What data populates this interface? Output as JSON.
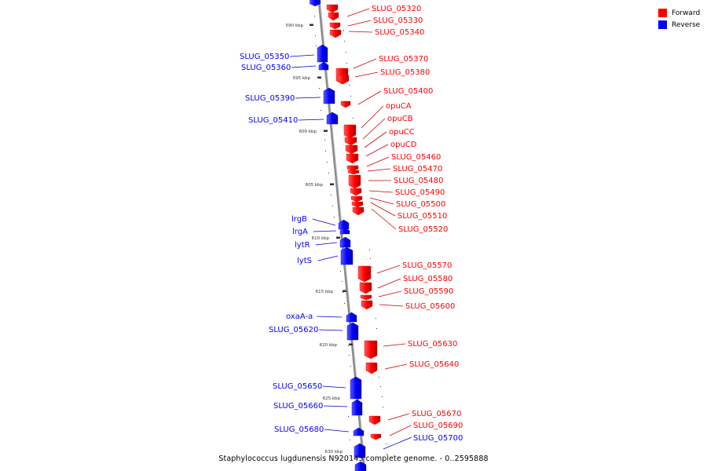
{
  "caption": "Staphylococcus lugdunensis N920143 complete genome. - 0..2595888",
  "legend": [
    {
      "label": "Forward",
      "color": "#ff0000"
    },
    {
      "label": "Reverse",
      "color": "#0000ff"
    }
  ],
  "colors": {
    "forward": "#ff0000",
    "reverse": "#0000ff",
    "backbone": "#8c8c8c",
    "leader_forward": "#cc0000",
    "leader_reverse": "#0000cc"
  },
  "scale_labels": [
    "590 kbp",
    "595 kbp",
    "600 kbp",
    "605 kbp",
    "610 kbp",
    "615 kbp",
    "620 kbp",
    "625 kbp",
    "630 kbp"
  ],
  "forward_genes": [
    "SLUG_05320",
    "SLUG_05330",
    "SLUG_05340",
    "SLUG_05370",
    "SLUG_05380",
    "SLUG_05400",
    "opuCA",
    "opuCB",
    "opuCC",
    "opuCD",
    "SLUG_05460",
    "SLUG_05470",
    "SLUG_05480",
    "SLUG_05490",
    "SLUG_05500",
    "SLUG_05510",
    "SLUG_05520",
    "SLUG_05570",
    "SLUG_05580",
    "SLUG_05590",
    "SLUG_05600",
    "SLUG_05630",
    "SLUG_05640",
    "SLUG_05670",
    "SLUG_05690"
  ],
  "reverse_genes": [
    "SLUG_05350",
    "SLUG_05360",
    "SLUG_05390",
    "SLUG_05410",
    "lrgB",
    "lrgA",
    "lytR",
    "lytS",
    "oxaA-a",
    "SLUG_05620",
    "SLUG_05650",
    "SLUG_05660",
    "SLUG_05680",
    "SLUG_05700"
  ]
}
